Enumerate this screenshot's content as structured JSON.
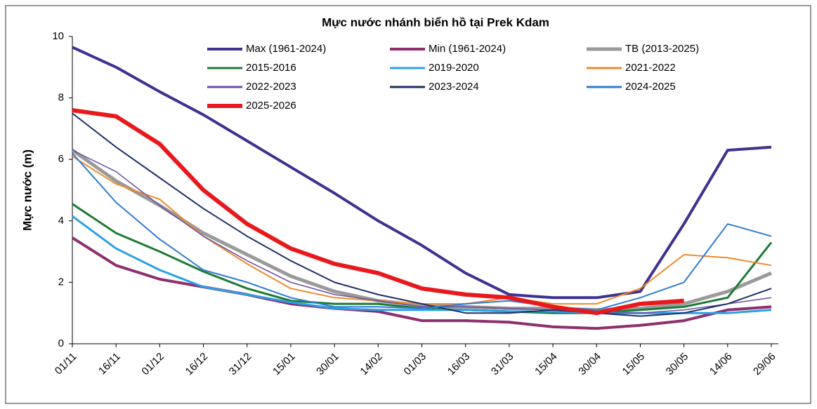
{
  "chart_data": {
    "type": "line",
    "title": "Mực nước nhánh biển hồ tại Prek Kdam",
    "y_label": "Mực nước (m)",
    "categories": [
      "01/11",
      "16/11",
      "01/12",
      "16/12",
      "31/12",
      "15/01",
      "30/01",
      "14/02",
      "01/03",
      "16/03",
      "31/03",
      "15/04",
      "30/04",
      "15/05",
      "30/05",
      "14/06",
      "29/06"
    ],
    "ylim": [
      0,
      10
    ],
    "yticks": [
      0,
      2,
      4,
      6,
      8,
      10
    ],
    "grid": false,
    "series": [
      {
        "name": "Max (1961-2024)",
        "color": "#3f3190",
        "values": [
          9.65,
          9.0,
          8.2,
          7.45,
          6.6,
          5.75,
          4.9,
          4.0,
          3.2,
          2.3,
          1.6,
          1.5,
          1.5,
          1.7,
          3.9,
          6.3,
          6.4
        ]
      },
      {
        "name": "Min (1961-2024)",
        "color": "#8e2f6f",
        "values": [
          3.45,
          2.55,
          2.1,
          1.85,
          1.6,
          1.3,
          1.15,
          1.05,
          0.75,
          0.75,
          0.7,
          0.55,
          0.5,
          0.6,
          0.75,
          1.1,
          1.2
        ]
      },
      {
        "name": "TB (2013-2025)",
        "color": "#9a9a9a",
        "values": [
          6.3,
          5.3,
          4.5,
          3.6,
          2.9,
          2.2,
          1.7,
          1.4,
          1.25,
          1.2,
          1.15,
          1.15,
          1.1,
          1.15,
          1.3,
          1.7,
          2.3
        ]
      },
      {
        "name": "2015-2016",
        "color": "#1e7a34",
        "values": [
          4.55,
          3.6,
          3.0,
          2.35,
          1.8,
          1.4,
          1.3,
          1.3,
          1.15,
          1.1,
          1.05,
          1.0,
          1.0,
          1.1,
          1.2,
          1.5,
          3.3
        ]
      },
      {
        "name": "2019-2020",
        "color": "#2aa1e6",
        "values": [
          4.15,
          3.1,
          2.4,
          1.85,
          1.6,
          1.35,
          1.15,
          1.1,
          1.1,
          1.1,
          1.05,
          1.05,
          1.0,
          1.0,
          1.0,
          1.0,
          1.1
        ]
      },
      {
        "name": "2021-2022",
        "color": "#ef8a2a",
        "values": [
          6.1,
          5.2,
          4.7,
          3.5,
          2.6,
          1.8,
          1.5,
          1.4,
          1.3,
          1.3,
          1.5,
          1.3,
          1.3,
          1.8,
          2.9,
          2.8,
          2.55
        ]
      },
      {
        "name": "2022-2023",
        "color": "#6a4ea0",
        "values": [
          6.3,
          5.6,
          4.5,
          3.5,
          2.7,
          2.0,
          1.6,
          1.4,
          1.2,
          1.2,
          1.15,
          1.1,
          1.0,
          1.0,
          1.1,
          1.3,
          1.5
        ]
      },
      {
        "name": "2023-2024",
        "color": "#1f2f66",
        "values": [
          7.5,
          6.4,
          5.4,
          4.4,
          3.5,
          2.7,
          2.0,
          1.6,
          1.3,
          1.0,
          1.0,
          1.1,
          1.0,
          0.9,
          1.0,
          1.3,
          1.8
        ]
      },
      {
        "name": "2024-2025",
        "color": "#2f7bd6",
        "values": [
          6.2,
          4.6,
          3.4,
          2.4,
          2.0,
          1.5,
          1.2,
          1.2,
          1.15,
          1.3,
          1.4,
          1.2,
          1.1,
          1.5,
          2.0,
          3.9,
          3.5
        ]
      },
      {
        "name": "2025-2026",
        "color": "#e8191d",
        "values": [
          7.6,
          7.4,
          6.5,
          5.0,
          3.9,
          3.1,
          2.6,
          2.3,
          1.8,
          1.6,
          1.5,
          1.2,
          1.0,
          1.3,
          1.4,
          null,
          null
        ]
      }
    ]
  }
}
